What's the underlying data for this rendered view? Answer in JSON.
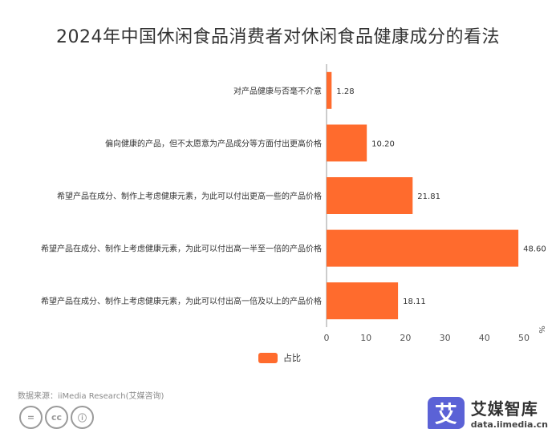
{
  "title": "2024年中国休闲食品消费者对休闲食品健康成分的看法",
  "source": "数据来源：iiMedia Research(艾媒咨询)",
  "brand": {
    "name": "艾媒智库",
    "url": "data.iimedia.cn",
    "mark": "艾"
  },
  "license_icons": [
    "=",
    "cc",
    "ⓘ"
  ],
  "colors": {
    "bar": "#ff6b2d",
    "axis": "#888888",
    "text": "#333333"
  },
  "chart_data": {
    "type": "bar",
    "orientation": "horizontal",
    "categories": [
      "对产品健康与否毫不介意",
      "偏向健康的产品，但不太愿意为产品成分等方面付出更高价格",
      "希望产品在成分、制作上考虑健康元素，为此可以付出更高一些的产品价格",
      "希望产品在成分、制作上考虑健康元素，为此可以付出高一半至一倍的产品价格",
      "希望产品在成分、制作上考虑健康元素，为此可以付出高一倍及以上的产品价格"
    ],
    "series": [
      {
        "name": "占比",
        "values": [
          1.28,
          10.2,
          21.81,
          48.6,
          18.11
        ],
        "labels": [
          "1.28",
          "10.20",
          "21.81",
          "48.60",
          "18.11"
        ]
      }
    ],
    "xlim": [
      0,
      50
    ],
    "xticks": [
      0,
      10,
      20,
      30,
      40,
      50
    ],
    "xunit": "%",
    "legend": "bottom"
  }
}
